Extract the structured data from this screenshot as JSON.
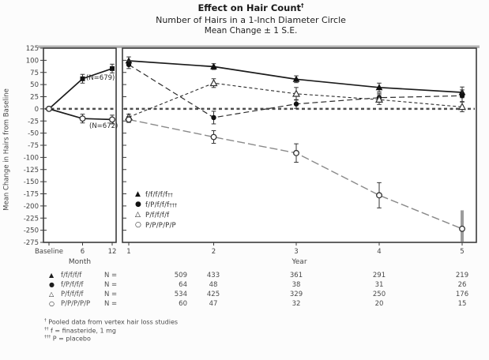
{
  "chart_data": {
    "type": "line",
    "title": "Effect on Hair Count",
    "title_mark": "†",
    "subtitle1": "Number of Hairs in a 1-Inch Diameter Circle",
    "subtitle2": "Mean Change ± 1 S.E.",
    "ylabel": "Mean Change in Hairs from Baseline",
    "ylim": [
      -275,
      125
    ],
    "y_ticks": [
      125,
      100,
      75,
      50,
      25,
      0,
      -25,
      -50,
      -75,
      -100,
      -125,
      -150,
      -175,
      -200,
      -225,
      -250,
      -275
    ],
    "grid": false,
    "zero_line": true,
    "legend_position": "lower-left-of-right-panel",
    "panels": [
      {
        "xlabel": "Month",
        "x_ticks": [
          "Baseline",
          "6",
          "12"
        ],
        "series": [
          {
            "name": "finasteride",
            "annotation": "(N=679)",
            "marker": "filled-square",
            "line": "solid",
            "values": [
              0,
              62,
              83
            ],
            "se": [
              3,
              9,
              9
            ]
          },
          {
            "name": "placebo",
            "annotation": "(N=672)",
            "marker": "open-circle",
            "line": "solid",
            "values": [
              0,
              -20,
              -22
            ],
            "se": [
              3,
              9,
              9
            ]
          }
        ]
      },
      {
        "xlabel": "Year",
        "x_ticks": [
          "1",
          "2",
          "3",
          "4",
          "5"
        ],
        "series": [
          {
            "name": "f/f/f/f/f",
            "sup": "††",
            "marker": "filled-triangle",
            "line": "solid",
            "values": [
              99,
              87,
              61,
              44,
              34
            ],
            "se": [
              8,
              6,
              7,
              9,
              11
            ]
          },
          {
            "name": "f/P/f/f/f",
            "sup": "†††",
            "marker": "filled-circle",
            "line": "dashed",
            "values": [
              91,
              -18,
              10,
              23,
              27
            ],
            "se": [
              8,
              13,
              9,
              9,
              12
            ]
          },
          {
            "name": "P/f/f/f/f",
            "sup": "",
            "marker": "open-triangle",
            "line": "dash-dot",
            "values": [
              -17,
              53,
              31,
              19,
              4
            ],
            "se": [
              6,
              9,
              13,
              10,
              10
            ]
          },
          {
            "name": "P/P/P/P/P",
            "sup": "",
            "marker": "open-circle",
            "line": "gray",
            "values": [
              -22,
              -58,
              -91,
              -178,
              -247
            ],
            "se": [
              6,
              13,
              19,
              26,
              38
            ],
            "heavy_se_index": 4
          }
        ]
      }
    ]
  },
  "n_table": {
    "n_label": "N =",
    "rows": [
      {
        "marker": "filled-triangle",
        "label": "f/f/f/f/f",
        "values": [
          "509",
          "433",
          "361",
          "291",
          "219"
        ]
      },
      {
        "marker": "filled-circle",
        "label": "f/P/f/f/f",
        "values": [
          "64",
          "48",
          "38",
          "31",
          "26"
        ]
      },
      {
        "marker": "open-triangle",
        "label": "P/f/f/f/f",
        "values": [
          "534",
          "425",
          "329",
          "250",
          "176"
        ]
      },
      {
        "marker": "open-circle",
        "label": "P/P/P/P/P",
        "values": [
          "60",
          "47",
          "32",
          "20",
          "15"
        ]
      }
    ]
  },
  "footnotes": [
    {
      "mark": "†",
      "text": "Pooled data from vertex hair loss studies"
    },
    {
      "mark": "††",
      "text": "f = finasteride, 1 mg"
    },
    {
      "mark": "†††",
      "text": "P = placebo"
    }
  ]
}
